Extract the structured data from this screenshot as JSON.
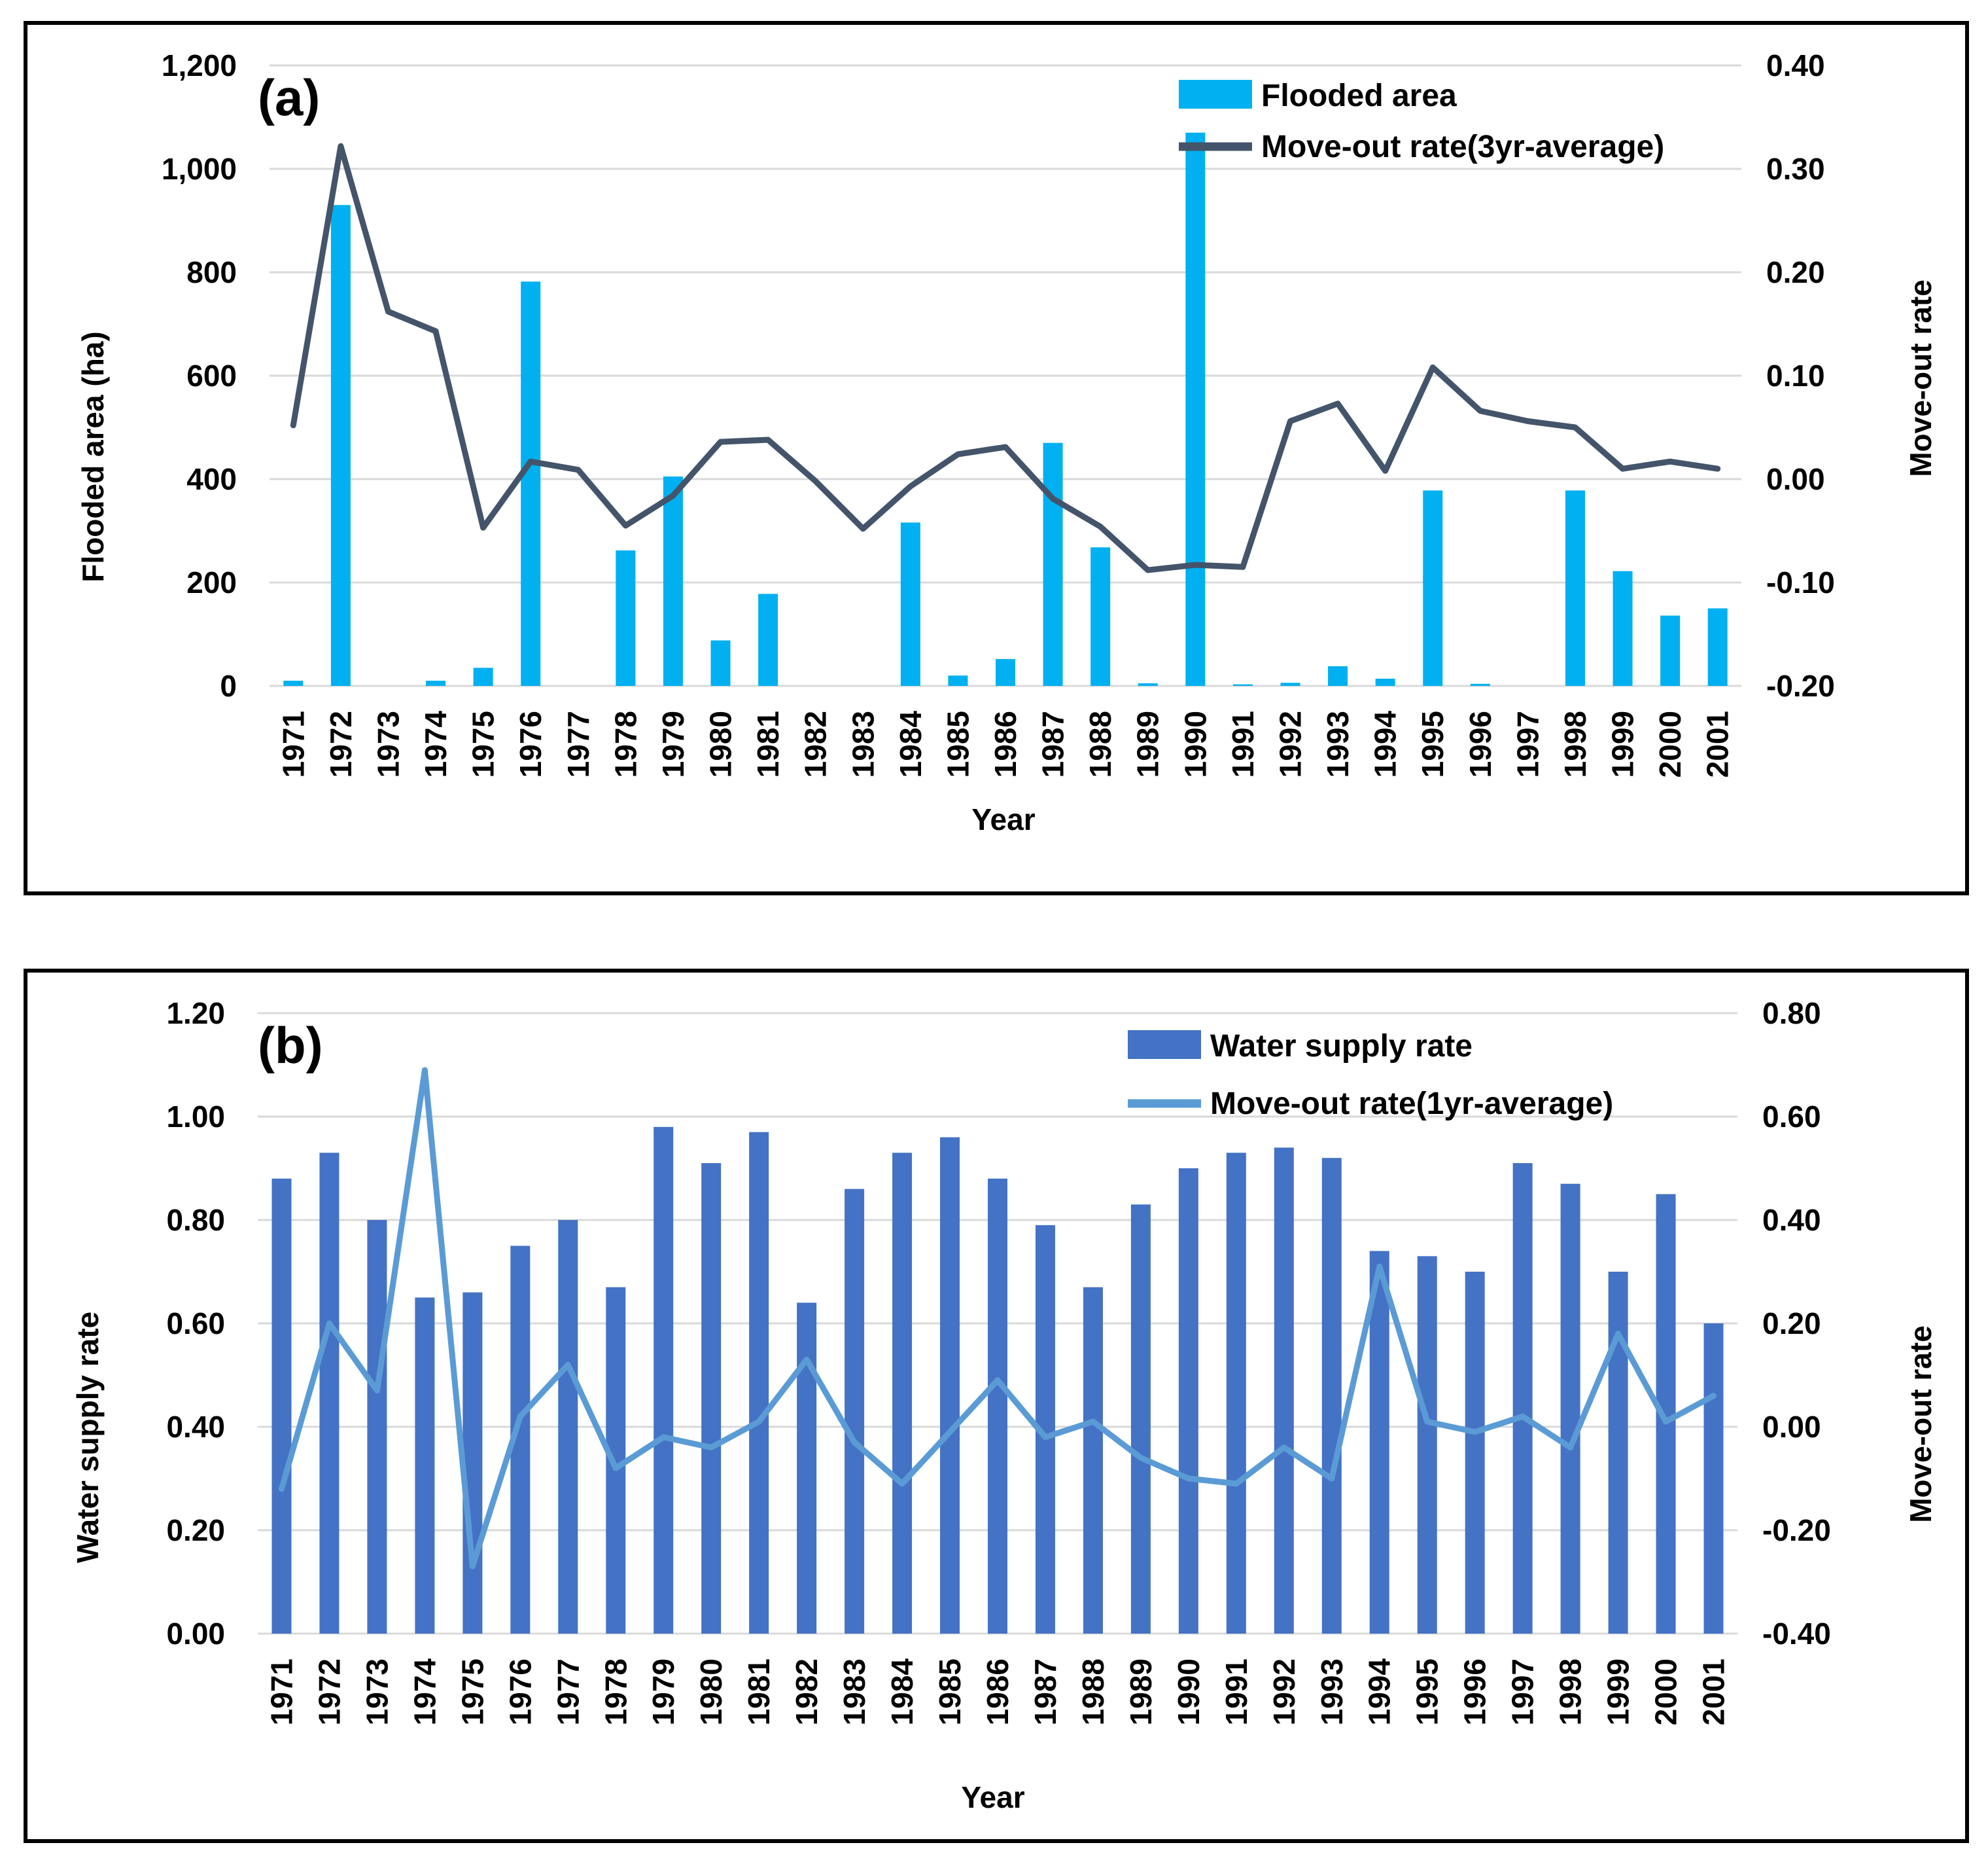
{
  "colors": {
    "flooded_bar": "#00B0F0",
    "moveout_3yr_line": "#44546A",
    "water_bar": "#4472C4",
    "moveout_1yr_line": "#5B9BD5",
    "grid": "#D9D9D9"
  },
  "chart_data": [
    {
      "id": "a",
      "type": "bar+line",
      "panel_label": "(a)",
      "xlabel": "Year",
      "ylabel": "Flooded area (ha)",
      "y2label": "Move-out rate",
      "ylim": [
        0,
        1200
      ],
      "y2lim": [
        -0.2,
        0.4
      ],
      "yticks": [
        0,
        200,
        400,
        600,
        800,
        1000,
        1200
      ],
      "ytick_labels": [
        "0",
        "200",
        "400",
        "600",
        "800",
        "1,000",
        "1,200"
      ],
      "y2ticks": [
        -0.2,
        -0.1,
        0.0,
        0.1,
        0.2,
        0.3,
        0.4
      ],
      "y2tick_labels": [
        "-0.20",
        "-0.10",
        "0.00",
        "0.10",
        "0.20",
        "0.30",
        "0.40"
      ],
      "legend_position": "top-right",
      "categories": [
        "1971",
        "1972",
        "1973",
        "1974",
        "1975",
        "1976",
        "1977",
        "1978",
        "1979",
        "1980",
        "1981",
        "1982",
        "1983",
        "1984",
        "1985",
        "1986",
        "1987",
        "1988",
        "1989",
        "1990",
        "1991",
        "1992",
        "1993",
        "1994",
        "1995",
        "1996",
        "1997",
        "1998",
        "1999",
        "2000",
        "2001"
      ],
      "series": [
        {
          "name": "Flooded area",
          "kind": "bar",
          "axis": "left",
          "values": [
            10,
            930,
            0,
            10,
            35,
            782,
            0,
            262,
            405,
            88,
            178,
            0,
            0,
            316,
            20,
            52,
            470,
            268,
            5,
            1070,
            3,
            6,
            38,
            14,
            378,
            4,
            0,
            378,
            222,
            136,
            150
          ]
        },
        {
          "name": "Move-out rate(3yr-average)",
          "kind": "line",
          "axis": "right",
          "values": [
            0.052,
            0.322,
            0.162,
            0.143,
            -0.047,
            0.017,
            0.009,
            -0.045,
            -0.016,
            0.036,
            0.038,
            -0.002,
            -0.048,
            -0.007,
            0.024,
            0.031,
            -0.019,
            -0.046,
            -0.088,
            -0.083,
            -0.085,
            0.056,
            0.073,
            0.008,
            0.108,
            0.066,
            0.056,
            0.05,
            0.01,
            0.017,
            0.01
          ]
        }
      ]
    },
    {
      "id": "b",
      "type": "bar+line",
      "panel_label": "(b)",
      "xlabel": "Year",
      "ylabel": "Water supply rate",
      "y2label": "Move-out rate",
      "ylim": [
        0,
        1.2
      ],
      "y2lim": [
        -0.4,
        0.8
      ],
      "yticks": [
        0,
        0.2,
        0.4,
        0.6,
        0.8,
        1.0,
        1.2
      ],
      "ytick_labels": [
        "0.00",
        "0.20",
        "0.40",
        "0.60",
        "0.80",
        "1.00",
        "1.20"
      ],
      "y2ticks": [
        -0.4,
        -0.2,
        0.0,
        0.2,
        0.4,
        0.6,
        0.8
      ],
      "y2tick_labels": [
        "-0.40",
        "-0.20",
        "0.00",
        "0.20",
        "0.40",
        "0.60",
        "0.80"
      ],
      "legend_position": "top-right",
      "categories": [
        "1971",
        "1972",
        "1973",
        "1974",
        "1975",
        "1976",
        "1977",
        "1978",
        "1979",
        "1980",
        "1981",
        "1982",
        "1983",
        "1984",
        "1985",
        "1986",
        "1987",
        "1988",
        "1989",
        "1990",
        "1991",
        "1992",
        "1993",
        "1994",
        "1995",
        "1996",
        "1997",
        "1998",
        "1999",
        "2000",
        "2001"
      ],
      "series": [
        {
          "name": "Water supply rate",
          "kind": "bar",
          "axis": "left",
          "values": [
            0.88,
            0.93,
            0.8,
            0.65,
            0.66,
            0.75,
            0.8,
            0.67,
            0.98,
            0.91,
            0.97,
            0.64,
            0.86,
            0.93,
            0.96,
            0.88,
            0.79,
            0.67,
            0.83,
            0.9,
            0.93,
            0.94,
            0.92,
            0.74,
            0.73,
            0.7,
            0.91,
            0.87,
            0.7,
            0.85,
            0.6
          ]
        },
        {
          "name": "Move-out rate(1yr-average)",
          "kind": "line",
          "axis": "right",
          "values": [
            -0.12,
            0.2,
            0.07,
            0.69,
            -0.27,
            0.02,
            0.12,
            -0.08,
            -0.02,
            -0.04,
            0.01,
            0.13,
            -0.03,
            -0.11,
            -0.01,
            0.09,
            -0.02,
            0.01,
            -0.06,
            -0.1,
            -0.11,
            -0.04,
            -0.1,
            0.31,
            0.01,
            -0.01,
            0.02,
            -0.04,
            0.18,
            0.01,
            0.06
          ]
        }
      ]
    }
  ]
}
